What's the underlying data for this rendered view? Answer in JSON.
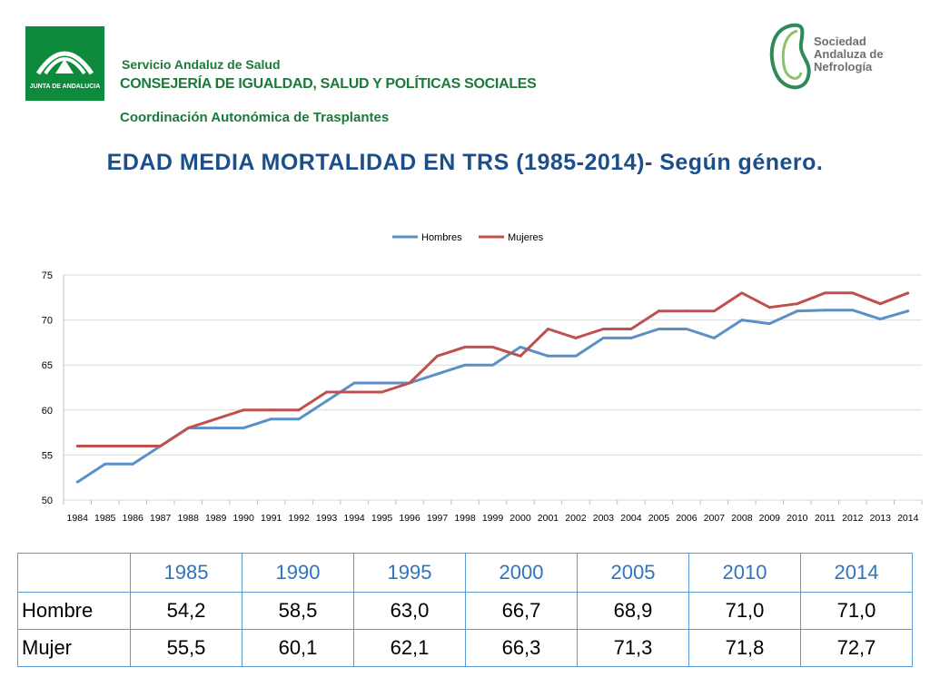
{
  "header": {
    "org_line1": "Servicio Andaluz de Salud",
    "org_line2": "CONSEJERÍA DE IGUALDAD, SALUD Y POLÍTICAS SOCIALES",
    "org_line3": "Coordinación Autonómica de Trasplantes",
    "logo_left_text": "JUNTA DE ANDALUCIA",
    "logo_right_text": [
      "Sociedad",
      "Andaluza de",
      "Nefrología"
    ]
  },
  "title": "EDAD MEDIA MORTALIDAD EN TRS (1985-2014)- Según género.",
  "colors": {
    "hombres": "#5b8fc7",
    "mujeres": "#c0504d",
    "grid": "#d9d9d9",
    "title": "#1c4f8a",
    "brand_green": "#0d8a3c"
  },
  "chart_data": {
    "type": "line",
    "x": [
      "1984",
      "1985",
      "1986",
      "1987",
      "1988",
      "1989",
      "1990",
      "1991",
      "1992",
      "1993",
      "1994",
      "1995",
      "1996",
      "1997",
      "1998",
      "1999",
      "2000",
      "2001",
      "2002",
      "2003",
      "2004",
      "2005",
      "2006",
      "2007",
      "2008",
      "2009",
      "2010",
      "2011",
      "2012",
      "2013",
      "2014"
    ],
    "yticks": [
      "50",
      "55",
      "60",
      "65",
      "70",
      "75"
    ],
    "ylim": [
      50,
      75
    ],
    "legend_position": "top",
    "grid": true,
    "series": [
      {
        "name": "Hombres",
        "color": "#5b8fc7",
        "values": [
          52,
          54,
          54,
          56,
          58,
          58,
          58,
          59,
          59,
          61,
          63,
          63,
          63,
          64,
          65,
          65,
          67,
          66,
          66,
          68,
          68,
          69,
          69,
          68,
          70,
          69.6,
          71,
          71.1,
          71.1,
          70.1,
          71
        ]
      },
      {
        "name": "Mujeres",
        "color": "#c0504d",
        "values": [
          56,
          56,
          56,
          56,
          58,
          59,
          60,
          60,
          60,
          62,
          62,
          62,
          63,
          66,
          67,
          67,
          66,
          69,
          68,
          69,
          69,
          71,
          71,
          71,
          73,
          71.4,
          71.8,
          73,
          73,
          71.8,
          73
        ]
      }
    ]
  },
  "table": {
    "years": [
      "1985",
      "1990",
      "1995",
      "2000",
      "2005",
      "2010",
      "2014"
    ],
    "rows": [
      {
        "label": "Hombre",
        "values": [
          "54,2",
          "58,5",
          "63,0",
          "66,7",
          "68,9",
          "71,0",
          "71,0"
        ]
      },
      {
        "label": "Mujer",
        "values": [
          "55,5",
          "60,1",
          "62,1",
          "66,3",
          "71,3",
          "71,8",
          "72,7"
        ]
      }
    ]
  }
}
